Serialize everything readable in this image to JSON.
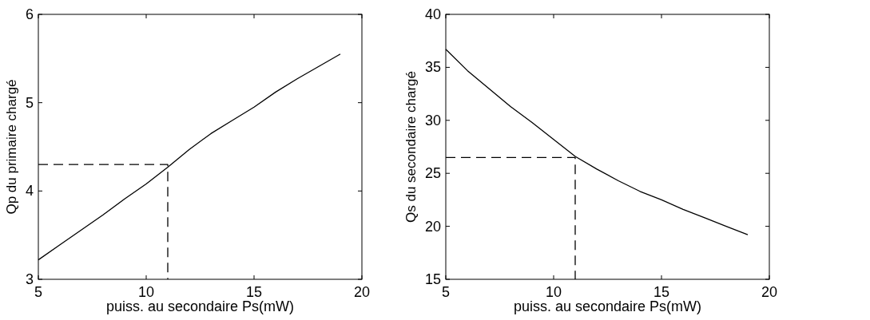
{
  "chart_data": [
    {
      "type": "line",
      "xlabel": "puiss. au secondaire Ps(mW)",
      "ylabel": "Qp du primaire chargé",
      "xlim": [
        5,
        20
      ],
      "ylim": [
        3,
        6
      ],
      "xticks": [
        5,
        10,
        15,
        20
      ],
      "yticks": [
        3,
        4,
        5,
        6
      ],
      "grid": false,
      "series": [
        {
          "color": "#000000",
          "line_style": "solid",
          "x": [
            5,
            6,
            7,
            8,
            9,
            10,
            11,
            12,
            13,
            14,
            15,
            16,
            17,
            18,
            19
          ],
          "values": [
            3.22,
            3.39,
            3.56,
            3.73,
            3.91,
            4.08,
            4.27,
            4.47,
            4.65,
            4.8,
            4.95,
            5.12,
            5.27,
            5.41,
            5.55
          ]
        },
        {
          "color": "#000000",
          "line_style": "dashed",
          "x": [
            5,
            11,
            11
          ],
          "values": [
            4.3,
            4.3,
            3
          ]
        }
      ]
    },
    {
      "type": "line",
      "xlabel": "puiss. au secondaire Ps(mW)",
      "ylabel": "Qs du secondaire chargé",
      "xlim": [
        5,
        20
      ],
      "ylim": [
        15,
        40
      ],
      "xticks": [
        5,
        10,
        15,
        20
      ],
      "yticks": [
        15,
        20,
        25,
        30,
        35,
        40
      ],
      "grid": false,
      "series": [
        {
          "color": "#000000",
          "line_style": "solid",
          "x": [
            5,
            6,
            7,
            8,
            9,
            10,
            11,
            12,
            13,
            14,
            15,
            16,
            17,
            18,
            19
          ],
          "values": [
            36.7,
            34.7,
            33.0,
            31.3,
            29.8,
            28.2,
            26.6,
            25.4,
            24.3,
            23.3,
            22.5,
            21.6,
            20.8,
            20.0,
            19.2
          ]
        },
        {
          "color": "#000000",
          "line_style": "dashed",
          "x": [
            5,
            11,
            11
          ],
          "values": [
            26.5,
            26.5,
            15
          ]
        }
      ]
    }
  ]
}
